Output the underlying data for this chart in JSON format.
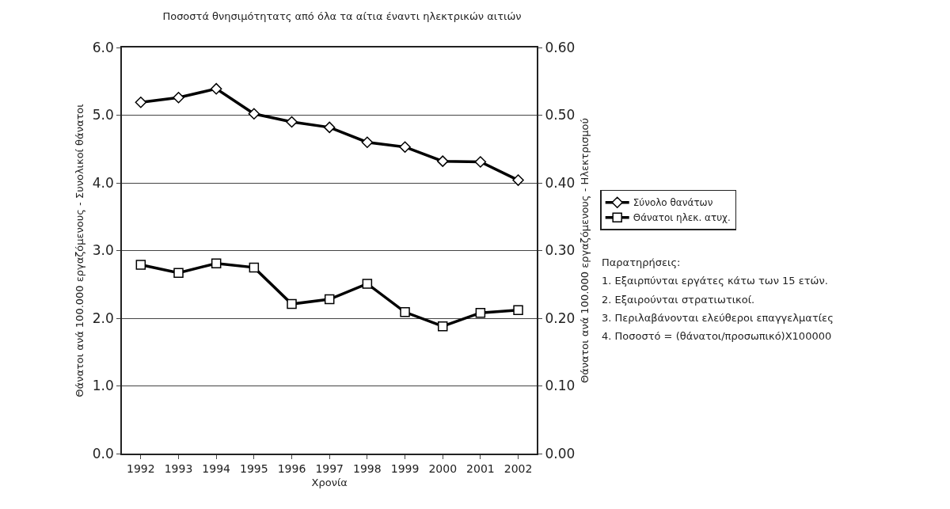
{
  "chart_data": {
    "type": "line",
    "title": "Ποσοστά θνησιμότητατς από όλα τα αίτια έναντι ηλεκτρικών αιτιών",
    "xlabel": "Χρονία",
    "ylabel": "Θάνατοι ανά 100.000 εργαζόμενους - Συνολικοί θάνατοι",
    "y2label": "Θάνατοι ανά 100.000 εργαζόμενους - Ηλεκτρισμού",
    "categories": [
      "1992",
      "1993",
      "1994",
      "1995",
      "1996",
      "1997",
      "1998",
      "1999",
      "2000",
      "2001",
      "2002"
    ],
    "series": [
      {
        "name": "Σύνολο θανάτων",
        "color": "#000000",
        "marker": "diamond",
        "values": [
          5.19,
          5.26,
          5.39,
          5.02,
          4.9,
          4.82,
          4.6,
          4.53,
          4.32,
          4.31,
          4.04
        ]
      },
      {
        "name": "Θάνατοι ηλεκ. ατυχ.",
        "color": "#000000",
        "marker": "square",
        "axis": "y2",
        "values": [
          0.279,
          0.267,
          0.281,
          0.275,
          0.221,
          0.228,
          0.251,
          0.209,
          0.188,
          0.208,
          0.212
        ]
      }
    ],
    "ylim": [
      0,
      6
    ],
    "yticks": [
      {
        "value": 0,
        "label": "0.0"
      },
      {
        "value": 1,
        "label": "1.0"
      },
      {
        "value": 2,
        "label": "2.0"
      },
      {
        "value": 3,
        "label": "3.0"
      },
      {
        "value": 4,
        "label": "4.0"
      },
      {
        "value": 5,
        "label": "5.0"
      },
      {
        "value": 6,
        "label": "6.0"
      }
    ],
    "y2lim": [
      0,
      0.6
    ],
    "y2ticks": [
      {
        "value": 0,
        "label": "0.00"
      },
      {
        "value": 0.1,
        "label": "0.10"
      },
      {
        "value": 0.2,
        "label": "0.20"
      },
      {
        "value": 0.3,
        "label": "0.30"
      },
      {
        "value": 0.4,
        "label": "0.40"
      },
      {
        "value": 0.5,
        "label": "0.50"
      },
      {
        "value": 0.6,
        "label": "0.60"
      }
    ],
    "grid": "y",
    "legend": "right",
    "line_style": "solid",
    "annotations": [
      "Παρατηρήσεις:",
      "1. Εξαιρπύνται εργάτες κάτω των 15 ετών.",
      "2. Εξαιρούνται στρατιωτικοί.",
      "3. Περιλαβάνονται ελεύθεροι επαγγελματίες",
      "4. Ποσοστό = (θάνατοι/προσωπικό)X100000"
    ]
  }
}
